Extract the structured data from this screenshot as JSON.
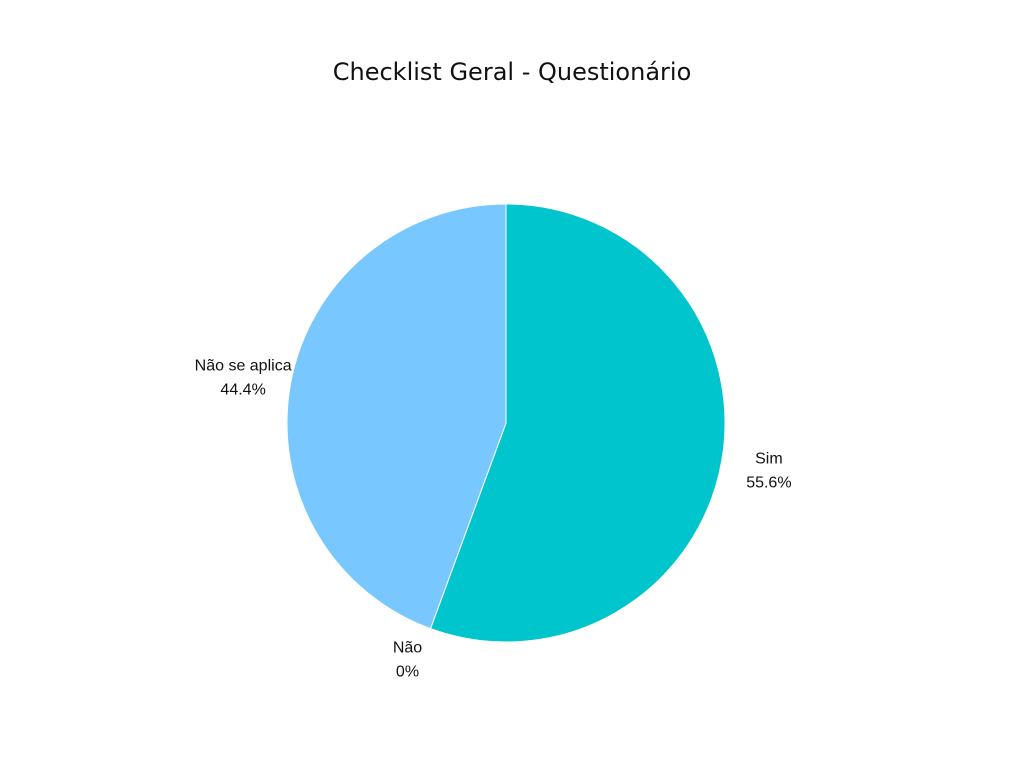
{
  "chart_data": {
    "type": "pie",
    "title": "Checklist Geral - Questionário",
    "slices": [
      {
        "name": "Sim",
        "value": 55.6,
        "label": "55.6%",
        "color": "#00c5cd"
      },
      {
        "name": "Não",
        "value": 0,
        "label": "0%",
        "color": "#1e6fb8"
      },
      {
        "name": "Não se aplica",
        "value": 44.4,
        "label": "44.4%",
        "color": "#78c8ff"
      }
    ],
    "start_angle_deg": 0,
    "direction": "clockwise"
  }
}
